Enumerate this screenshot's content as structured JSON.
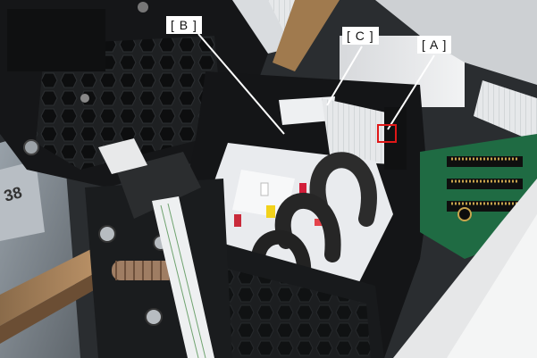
{
  "callouts": {
    "b": "[ B ]",
    "c": "[ C ]",
    "a": "[ A ]"
  },
  "stamp": "38",
  "colors": {
    "highlight_box": "#e01818",
    "leader_line": "#ffffff",
    "chassis": "#141517",
    "tray": "#e9ebee",
    "tube": "#2a2a2a",
    "spring": "#b98d6a",
    "pcb": "#1f6b43",
    "gold_pin": "#c9a44d"
  }
}
